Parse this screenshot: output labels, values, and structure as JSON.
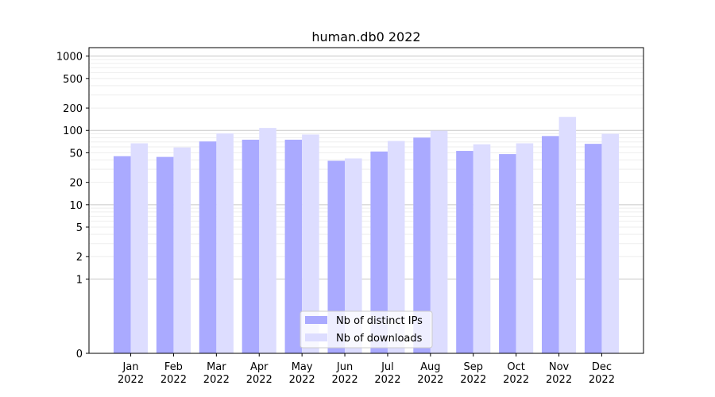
{
  "chart_data": {
    "type": "bar",
    "title": "human.db0 2022",
    "xlabel": "",
    "ylabel": "",
    "yscale": "symlog",
    "ylim": [
      0,
      1300
    ],
    "categories": [
      [
        "Jan",
        "2022"
      ],
      [
        "Feb",
        "2022"
      ],
      [
        "Mar",
        "2022"
      ],
      [
        "Apr",
        "2022"
      ],
      [
        "May",
        "2022"
      ],
      [
        "Jun",
        "2022"
      ],
      [
        "Jul",
        "2022"
      ],
      [
        "Aug",
        "2022"
      ],
      [
        "Sep",
        "2022"
      ],
      [
        "Oct",
        "2022"
      ],
      [
        "Nov",
        "2022"
      ],
      [
        "Dec",
        "2022"
      ]
    ],
    "yticks": [
      0,
      1,
      2,
      5,
      10,
      20,
      50,
      100,
      200,
      500,
      1000
    ],
    "ytick_labels": [
      "0",
      "1",
      "2",
      "5",
      "10",
      "20",
      "50",
      "100",
      "200",
      "500",
      "1000"
    ],
    "series": [
      {
        "name": "Nb of distinct IPs",
        "color": "#aaaaff",
        "values": [
          45,
          44,
          71,
          75,
          75,
          39,
          52,
          80,
          53,
          48,
          84,
          66
        ]
      },
      {
        "name": "Nb of downloads",
        "color": "#ddddff",
        "values": [
          67,
          59,
          91,
          108,
          88,
          42,
          72,
          99,
          65,
          67,
          152,
          90
        ]
      }
    ],
    "grid": true,
    "legend": "lower-center"
  }
}
